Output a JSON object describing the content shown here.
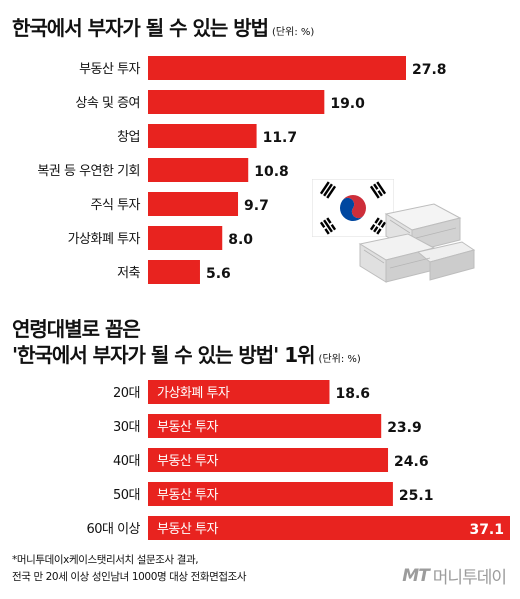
{
  "chart1": {
    "title": "한국에서 부자가 될 수 있는 방법",
    "unit": "(단위: %)"
  },
  "chart2": {
    "title_line1": "연령대별로 꼽은",
    "title_line2": "'한국에서 부자가 될 수 있는 방법' 1위",
    "unit": "(단위: %)"
  },
  "footnote": {
    "line1": "*머니투데이x케이스탯리서치 설문조사 결과,",
    "line2": "전국 만 20세 이상 성인남녀 1000명 대상 전화면접조사"
  },
  "logo": {
    "mark": "MT",
    "name": "머니투데이"
  },
  "colors": {
    "bar": "#e8231f",
    "text": "#111111",
    "bar_label": "#ffffff"
  },
  "icons": {
    "flag": "korea-flag-icon",
    "money": "money-stack-icon"
  },
  "chart_data": [
    {
      "type": "bar",
      "orientation": "horizontal",
      "title": "한국에서 부자가 될 수 있는 방법",
      "unit": "(단위: %)",
      "categories": [
        "부동산 투자",
        "상속 및 증여",
        "창업",
        "복권 등 우연한 기회",
        "주식 투자",
        "가상화폐 투자",
        "저축"
      ],
      "values": [
        27.8,
        19.0,
        11.7,
        10.8,
        9.7,
        8.0,
        5.6
      ],
      "value_labels": [
        "27.8",
        "19.0",
        "11.7",
        "10.8",
        "9.7",
        "8.0",
        "5.6"
      ],
      "xlim": [
        0,
        27.8
      ]
    },
    {
      "type": "bar",
      "orientation": "horizontal",
      "title": "연령대별로 꼽은 '한국에서 부자가 될 수 있는 방법' 1위",
      "unit": "(단위: %)",
      "categories": [
        "20대",
        "30대",
        "40대",
        "50대",
        "60대 이상"
      ],
      "bar_labels": [
        "가상화폐 투자",
        "부동산 투자",
        "부동산 투자",
        "부동산 투자",
        "부동산 투자"
      ],
      "values": [
        18.6,
        23.9,
        24.6,
        25.1,
        37.1
      ],
      "value_labels": [
        "18.6",
        "23.9",
        "24.6",
        "25.1",
        "37.1"
      ],
      "xlim": [
        0,
        37.1
      ]
    }
  ]
}
